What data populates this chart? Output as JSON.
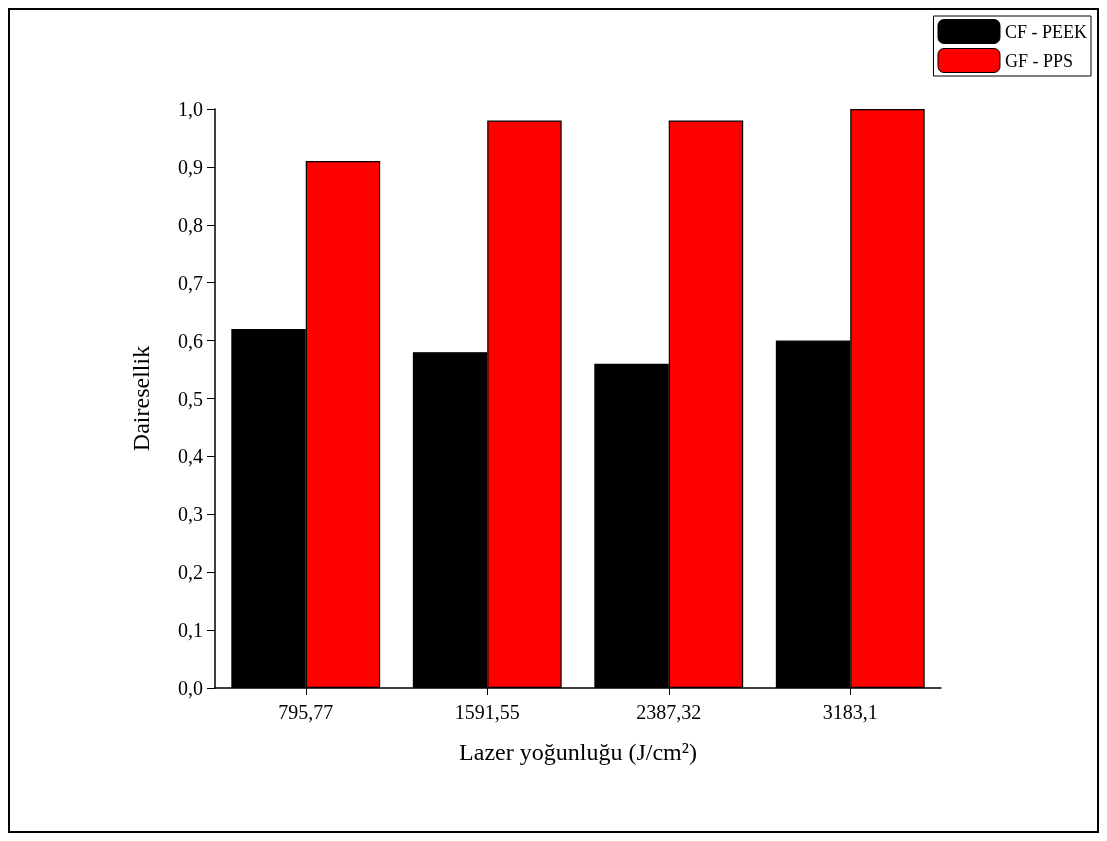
{
  "chart_data": {
    "type": "bar",
    "xlabel": "Lazer yoğunluğu (J/cm²)",
    "ylabel": "Dairesellik",
    "categories": [
      "795,77",
      "1591,55",
      "2387,32",
      "3183,1"
    ],
    "series": [
      {
        "name": "CF - PEEK",
        "color": "#000000",
        "values": [
          0.62,
          0.58,
          0.56,
          0.6
        ]
      },
      {
        "name": "GF - PPS",
        "color": "#ff0000",
        "values": [
          0.91,
          0.98,
          0.98,
          1.0
        ]
      }
    ],
    "ylim": [
      0,
      1
    ],
    "yticks": [
      {
        "value": 0,
        "label": "0,0"
      },
      {
        "value": 0.1,
        "label": "0,1"
      },
      {
        "value": 0.2,
        "label": "0,2"
      },
      {
        "value": 0.3,
        "label": "0,3"
      },
      {
        "value": 0.4,
        "label": "0,4"
      },
      {
        "value": 0.5,
        "label": "0,5"
      },
      {
        "value": 0.6,
        "label": "0,6"
      },
      {
        "value": 0.7,
        "label": "0,7"
      },
      {
        "value": 0.8,
        "label": "0,8"
      },
      {
        "value": 0.9,
        "label": "0,9"
      },
      {
        "value": 1,
        "label": "1,0"
      }
    ],
    "grid": false,
    "legend": "top right"
  }
}
